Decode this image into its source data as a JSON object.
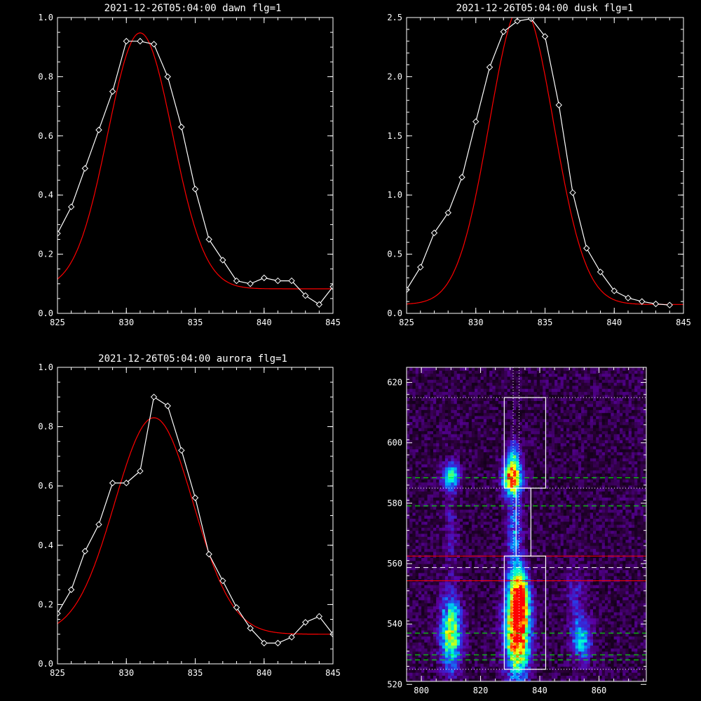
{
  "chart_data": [
    {
      "type": "line",
      "title": "2021-12-26T05:04:00 dawn flg=1",
      "xlim": [
        825,
        845
      ],
      "ylim": [
        0.0,
        1.0
      ],
      "xticks": [
        "825",
        "830",
        "835",
        "840",
        "845"
      ],
      "yticks": [
        "0.0",
        "0.2",
        "0.4",
        "0.6",
        "0.8",
        "1.0"
      ],
      "series": [
        {
          "kind": "data",
          "color": "#ffffff",
          "marker": "diamond",
          "x": [
            825,
            826,
            827,
            828,
            829,
            830,
            831,
            832,
            833,
            834,
            835,
            836,
            837,
            838,
            839,
            840,
            841,
            842,
            843,
            844,
            845
          ],
          "y": [
            0.27,
            0.36,
            0.49,
            0.62,
            0.75,
            0.92,
            0.92,
            0.91,
            0.8,
            0.63,
            0.42,
            0.25,
            0.18,
            0.11,
            0.1,
            0.12,
            0.11,
            0.11,
            0.06,
            0.03,
            0.09
          ]
        },
        {
          "kind": "fit",
          "color": "#ff0000",
          "gaussian": {
            "amplitude": 0.865,
            "center": 831.0,
            "sigma": 2.35,
            "baseline": 0.083
          }
        }
      ]
    },
    {
      "type": "line",
      "title": "2021-12-26T05:04:00 dusk flg=1",
      "xlim": [
        825,
        845
      ],
      "ylim": [
        0.0,
        2.5
      ],
      "xticks": [
        "825",
        "830",
        "835",
        "840",
        "845"
      ],
      "yticks": [
        "0.0",
        "0.5",
        "1.0",
        "1.5",
        "2.0",
        "2.5"
      ],
      "series": [
        {
          "kind": "data",
          "color": "#ffffff",
          "marker": "diamond",
          "x": [
            825,
            826,
            827,
            828,
            829,
            830,
            831,
            832,
            833,
            834,
            835,
            836,
            837,
            838,
            839,
            840,
            841,
            842,
            843,
            844
          ],
          "y": [
            0.2,
            0.39,
            0.68,
            0.85,
            1.15,
            1.62,
            2.08,
            2.38,
            2.47,
            2.49,
            2.34,
            1.76,
            1.02,
            0.55,
            0.35,
            0.19,
            0.13,
            0.1,
            0.08,
            0.07
          ]
        },
        {
          "kind": "fit",
          "color": "#ff0000",
          "gaussian": {
            "amplitude": 2.53,
            "center": 833.3,
            "sigma": 2.32,
            "baseline": 0.075
          }
        }
      ]
    },
    {
      "type": "line",
      "title": "2021-12-26T05:04:00 aurora flg=1",
      "xlim": [
        825,
        845
      ],
      "ylim": [
        0.0,
        1.0
      ],
      "xticks": [
        "825",
        "830",
        "835",
        "840",
        "845"
      ],
      "yticks": [
        "0.0",
        "0.2",
        "0.4",
        "0.6",
        "0.8",
        "1.0"
      ],
      "series": [
        {
          "kind": "data",
          "color": "#ffffff",
          "marker": "diamond",
          "x": [
            825,
            826,
            827,
            828,
            829,
            830,
            831,
            832,
            833,
            834,
            835,
            836,
            837,
            838,
            839,
            840,
            841,
            842,
            843,
            844,
            845
          ],
          "y": [
            0.17,
            0.25,
            0.38,
            0.47,
            0.61,
            0.61,
            0.65,
            0.9,
            0.87,
            0.72,
            0.56,
            0.37,
            0.28,
            0.19,
            0.12,
            0.07,
            0.07,
            0.09,
            0.14,
            0.16,
            0.1
          ]
        },
        {
          "kind": "fit",
          "color": "#ff0000",
          "gaussian": {
            "amplitude": 0.73,
            "center": 832.0,
            "sigma": 2.85,
            "baseline": 0.1
          }
        }
      ]
    },
    {
      "type": "heatmap",
      "title": "",
      "xlim": [
        795,
        876
      ],
      "ylim": [
        521,
        625
      ],
      "xticks": [
        "800",
        "820",
        "840",
        "860"
      ],
      "yticks": [
        "520",
        "540",
        "560",
        "580",
        "600",
        "620"
      ],
      "colormap": [
        "#000000",
        "#2a0038",
        "#5a00a0",
        "#3030e0",
        "#00a0ff",
        "#00ffd0",
        "#80ff40",
        "#ffff00",
        "#ff8000",
        "#ff0000"
      ],
      "blobs": [
        {
          "x": 810,
          "y": 589,
          "sx": 2.0,
          "sy": 3.0,
          "amp": 0.45
        },
        {
          "x": 830.5,
          "y": 588,
          "sx": 2.2,
          "sy": 3.5,
          "amp": 0.75
        },
        {
          "x": 831,
          "y": 595,
          "sx": 1.6,
          "sy": 4.0,
          "amp": 0.38
        },
        {
          "x": 831.5,
          "y": 570,
          "sx": 1.8,
          "sy": 9.0,
          "amp": 0.28
        },
        {
          "x": 810,
          "y": 570,
          "sx": 1.6,
          "sy": 10.0,
          "amp": 0.12
        },
        {
          "x": 810,
          "y": 537,
          "sx": 2.4,
          "sy": 8.0,
          "amp": 0.62
        },
        {
          "x": 832.5,
          "y": 538,
          "sx": 2.8,
          "sy": 10.0,
          "amp": 0.95
        },
        {
          "x": 833,
          "y": 550,
          "sx": 2.2,
          "sy": 6.0,
          "amp": 0.55
        },
        {
          "x": 854,
          "y": 535,
          "sx": 2.4,
          "sy": 5.0,
          "amp": 0.38
        },
        {
          "x": 852,
          "y": 550,
          "sx": 2.2,
          "sy": 6.0,
          "amp": 0.15
        }
      ],
      "boxes": [
        {
          "x0": 828.0,
          "x1": 842.0,
          "y0": 585.0,
          "y1": 615.0
        },
        {
          "x0": 832.0,
          "x1": 837.0,
          "y0": 562.5,
          "y1": 585.0
        },
        {
          "x0": 828.0,
          "x1": 842.0,
          "y0": 525.0,
          "y1": 562.5
        }
      ],
      "white_dotted_hlines": [
        615.0,
        585.0,
        525.0
      ],
      "white_dashed_hlines": [
        558.7
      ],
      "green_dashed_hlines": [
        588.4,
        579.1,
        537.0,
        529.8,
        528.1
      ],
      "red_hlines": [
        562.5,
        554.3
      ],
      "white_dotted_vlines": [
        831.0,
        833.0
      ]
    }
  ]
}
